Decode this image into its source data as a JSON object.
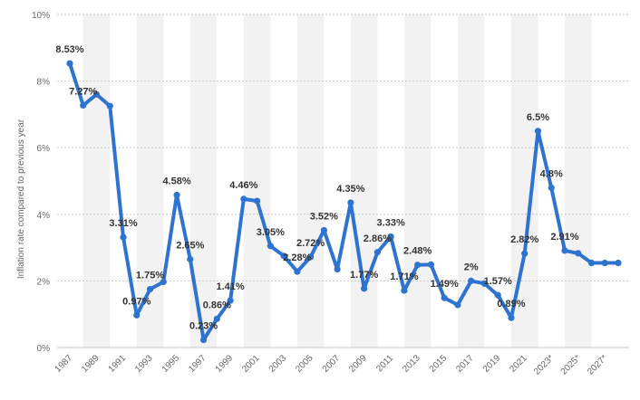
{
  "chart_data": {
    "type": "line",
    "title": "",
    "xlabel": "",
    "ylabel": "Inflation rate compared to previous year",
    "ylim": [
      0,
      10
    ],
    "y_ticks": [
      "0%",
      "2%",
      "4%",
      "6%",
      "8%",
      "10%"
    ],
    "x_tick_labels": [
      "1987",
      "1989",
      "1991",
      "1993",
      "1995",
      "1997",
      "1999",
      "2001",
      "2003",
      "2005",
      "2007",
      "2009",
      "2011",
      "2013",
      "2015",
      "2017",
      "2019",
      "2021",
      "2023*",
      "2025*",
      "2027*"
    ],
    "colors": {
      "line": "#2f73d0",
      "band": "#f2f2f2",
      "grid": "#c8c8c8",
      "label": "#333333",
      "tick": "#666666"
    },
    "series": [
      {
        "name": "Inflation rate",
        "x": [
          1987,
          1988,
          1989,
          1990,
          1991,
          1992,
          1993,
          1994,
          1995,
          1996,
          1997,
          1998,
          1999,
          2000,
          2001,
          2002,
          2003,
          2004,
          2005,
          2006,
          2007,
          2008,
          2009,
          2010,
          2011,
          2012,
          2013,
          2014,
          2015,
          2016,
          2017,
          2018,
          2019,
          2020,
          2021,
          2022,
          2023,
          2024,
          2025,
          2026,
          2027,
          2028
        ],
        "values": [
          8.53,
          7.27,
          7.6,
          7.25,
          3.31,
          0.97,
          1.75,
          1.97,
          4.58,
          2.65,
          0.23,
          0.86,
          1.41,
          4.46,
          4.4,
          3.05,
          2.75,
          2.28,
          2.72,
          3.52,
          2.35,
          4.35,
          1.77,
          2.86,
          3.33,
          1.71,
          2.48,
          2.49,
          1.49,
          1.28,
          2.0,
          1.92,
          1.57,
          0.89,
          2.82,
          6.5,
          4.8,
          2.91,
          2.83,
          2.54,
          2.54,
          2.54
        ],
        "labels": [
          "8.53%",
          "7.27%",
          "",
          "",
          "3.31%",
          "0.97%",
          "1.75%",
          "",
          "4.58%",
          "2.65%",
          "0.23%",
          "0.86%",
          "1.41%",
          "4.46%",
          "",
          "3.05%",
          "",
          "2.28%",
          "2.72%",
          "3.52%",
          "",
          "4.35%",
          "1.77%",
          "2.86%",
          "3.33%",
          "1.71%",
          "2.48%",
          "",
          "1.49%",
          "",
          "2%",
          "",
          "1.57%",
          "0.89%",
          "2.82%",
          "6.5%",
          "4.8%",
          "2.91%",
          "",
          "",
          "",
          ""
        ]
      }
    ]
  }
}
